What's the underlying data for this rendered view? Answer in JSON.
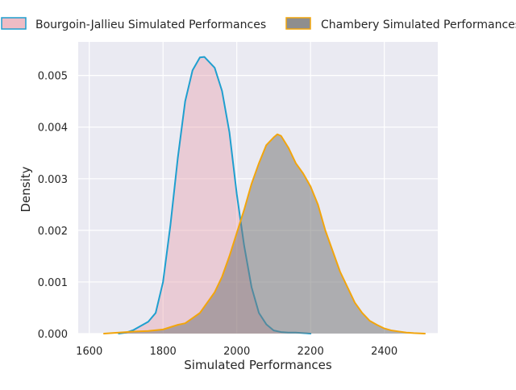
{
  "chart_data": {
    "type": "area",
    "xlabel": "Simulated Performances",
    "ylabel": "Density",
    "xlim": [
      1570,
      2545
    ],
    "ylim": [
      0,
      0.00565
    ],
    "xticks": [
      1600,
      1800,
      2000,
      2200,
      2400
    ],
    "xtick_labels": [
      "1600",
      "1800",
      "2000",
      "2200",
      "2400"
    ],
    "yticks": [
      0,
      0.001,
      0.002,
      0.003,
      0.004,
      0.005
    ],
    "ytick_labels": [
      "0.000",
      "0.001",
      "0.002",
      "0.003",
      "0.004",
      "0.005"
    ],
    "grid": true,
    "legend_position": "top",
    "background_color": "#eaeaf2",
    "grid_color": "#ffffff",
    "series": [
      {
        "name": "Bourgoin-Jallieu Simulated Performances",
        "line_color": "#1f9fcf",
        "fill_color": "#e8a6b2",
        "fill_opacity": 0.45,
        "x": [
          1680,
          1700,
          1720,
          1740,
          1760,
          1780,
          1800,
          1820,
          1840,
          1860,
          1880,
          1900,
          1912,
          1920,
          1940,
          1960,
          1980,
          2000,
          2020,
          2040,
          2060,
          2080,
          2100,
          2120,
          2140,
          2160,
          2180,
          2200
        ],
        "values": [
          0.0,
          2e-05,
          7e-05,
          0.00015,
          0.00023,
          0.0004,
          0.001,
          0.0021,
          0.0034,
          0.0045,
          0.0051,
          0.00535,
          0.00536,
          0.0053,
          0.00515,
          0.0047,
          0.0039,
          0.0027,
          0.0017,
          0.0009,
          0.0004,
          0.00018,
          6e-05,
          3e-05,
          2e-05,
          2e-05,
          1e-05,
          0.0
        ]
      },
      {
        "name": "Chambery Simulated Performances",
        "line_color": "#f2a50c",
        "fill_color": "#7a7a7a",
        "fill_opacity": 0.55,
        "x": [
          1640,
          1680,
          1720,
          1760,
          1800,
          1840,
          1860,
          1880,
          1900,
          1920,
          1940,
          1960,
          1980,
          2000,
          2020,
          2040,
          2060,
          2080,
          2100,
          2110,
          2120,
          2140,
          2160,
          2180,
          2200,
          2220,
          2240,
          2260,
          2280,
          2300,
          2320,
          2340,
          2360,
          2380,
          2400,
          2420,
          2440,
          2460,
          2480,
          2510
        ],
        "values": [
          0.0,
          2e-05,
          4e-05,
          5e-05,
          8e-05,
          0.00017,
          0.0002,
          0.0003,
          0.0004,
          0.0006,
          0.0008,
          0.0011,
          0.0015,
          0.00195,
          0.0024,
          0.0029,
          0.0033,
          0.00365,
          0.0038,
          0.00386,
          0.00383,
          0.0036,
          0.0033,
          0.0031,
          0.00285,
          0.0025,
          0.002,
          0.0016,
          0.0012,
          0.0009,
          0.0006,
          0.0004,
          0.00025,
          0.00017,
          0.0001,
          6e-05,
          4e-05,
          2e-05,
          1e-05,
          0.0
        ]
      }
    ]
  }
}
